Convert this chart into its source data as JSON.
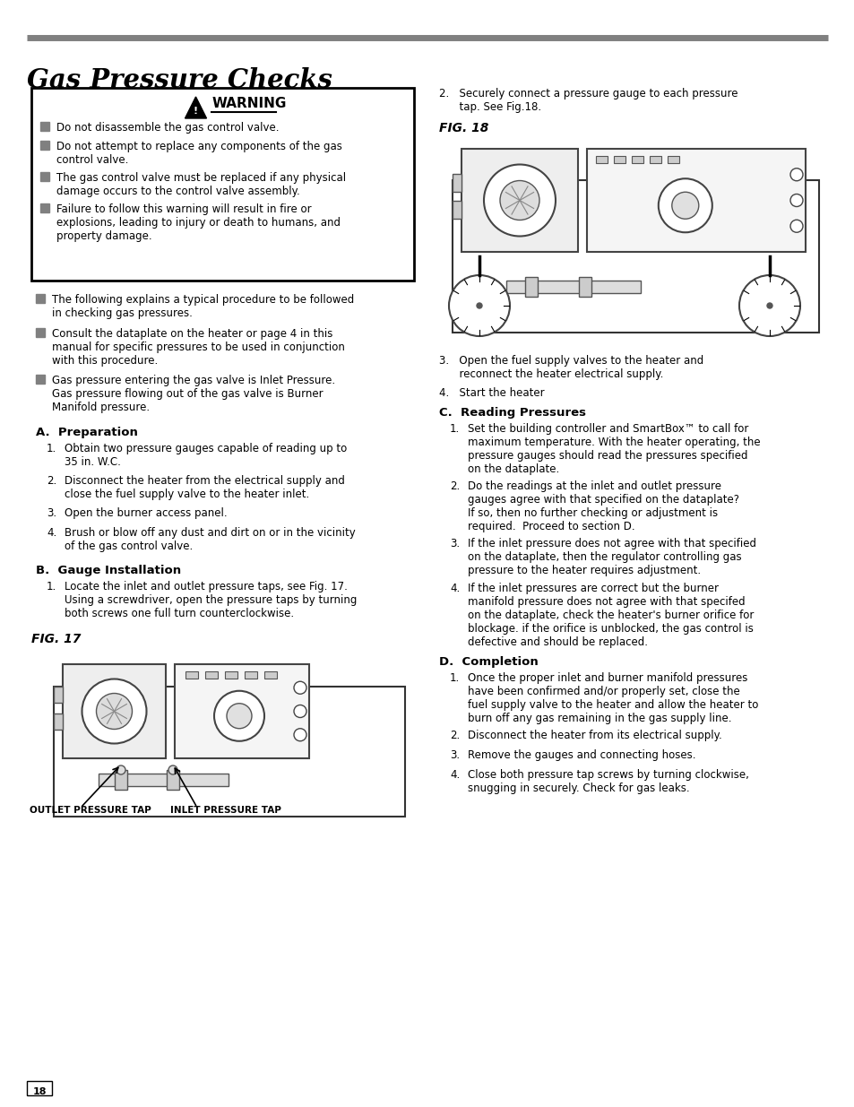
{
  "title": "Gas Pressure Checks",
  "title_fontsize": 20,
  "gray_line_color": "#808080",
  "warning_title": "  WARNING",
  "warning_items": [
    "Do not disassemble the gas control valve.",
    "Do not attempt to replace any components of the gas\ncontrol valve.",
    "The gas control valve must be replaced if any physical\ndamage occurs to the control valve assembly.",
    "Failure to follow this warning will result in fire or\nexplosions, leading to injury or death to humans, and\nproperty damage."
  ],
  "bullet_items": [
    "The following explains a typical procedure to be followed\nin checking gas pressures.",
    "Consult the dataplate on the heater or page 4 in this\nmanual for specific pressures to be used in conjunction\nwith this procedure.",
    "Gas pressure entering the gas valve is Inlet Pressure.\nGas pressure flowing out of the gas valve is Burner\nManifold pressure."
  ],
  "section_a_title": "A.  Preparation",
  "section_a_items": [
    "Obtain two pressure gauges capable of reading up to\n35 in. W.C.",
    "Disconnect the heater from the electrical supply and\nclose the fuel supply valve to the heater inlet.",
    "Open the burner access panel.",
    "Brush or blow off any dust and dirt on or in the vicinity\nof the gas control valve."
  ],
  "section_b_title": "B.  Gauge Installation",
  "section_b_items": [
    "Locate the inlet and outlet pressure taps, see Fig. 17.\nUsing a screwdriver, open the pressure taps by turning\nboth screws one full turn counterclockwise."
  ],
  "fig17_label": "FIG. 17",
  "fig17_caption_left": "OUTLET PRESSURE TAP",
  "fig17_caption_right": "INLET PRESSURE TAP",
  "right_col_step2": "2.   Securely connect a pressure gauge to each pressure\n      tap. See Fig.18.",
  "fig18_label": "FIG. 18",
  "right_col_step3": "3.   Open the fuel supply valves to the heater and\n      reconnect the heater electrical supply.",
  "right_col_step4": "4.   Start the heater",
  "section_c_title": "C.  Reading Pressures",
  "section_c_items": [
    "Set the building controller and SmartBox™ to call for\nmaximum temperature. With the heater operating, the\npressure gauges should read the pressures specified\non the dataplate.",
    "Do the readings at the inlet and outlet pressure\ngauges agree with that specified on the dataplate?\nIf so, then no further checking or adjustment is\nrequired.  Proceed to section D.",
    "If the inlet pressure does not agree with that specified\non the dataplate, then the regulator controlling gas\npressure to the heater requires adjustment.",
    "If the inlet pressures are correct but the burner\nmanifold pressure does not agree with that specifed\non the dataplate, check the heater's burner orifice for\nblockage. if the orifice is unblocked, the gas control is\ndefective and should be replaced."
  ],
  "section_d_title": "D.  Completion",
  "section_d_items": [
    "Once the proper inlet and burner manifold pressures\nhave been confirmed and/or properly set, close the\nfuel supply valve to the heater and allow the heater to\nburn off any gas remaining in the gas supply line.",
    "Disconnect the heater from its electrical supply.",
    "Remove the gauges and connecting hoses.",
    "Close both pressure tap screws by turning clockwise,\nsnugging in securely. Check for gas leaks."
  ],
  "page_number": "18",
  "background_color": "#ffffff",
  "text_color": "#000000",
  "bullet_color": "#808080"
}
